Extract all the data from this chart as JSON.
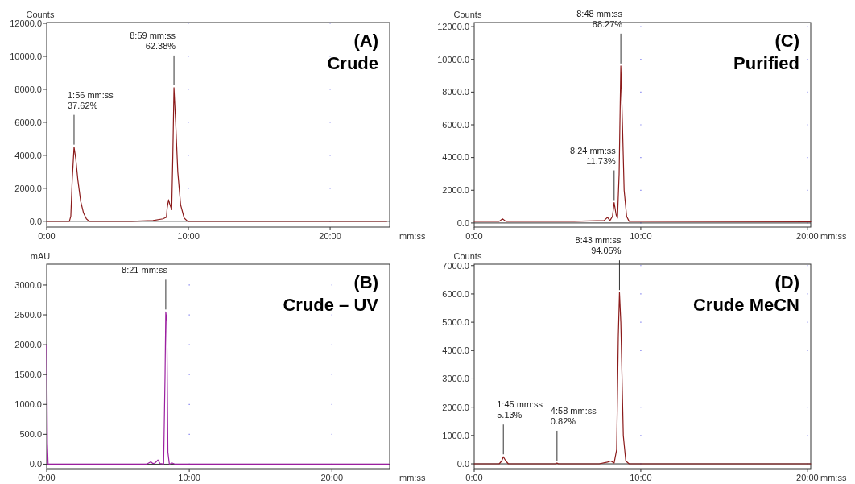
{
  "chart_data": [
    {
      "type": "line",
      "title": "(A)",
      "subtitle": "Crude",
      "ylabel": "Counts",
      "xlabel": "mm:ss",
      "xlim": [
        0,
        24.2
      ],
      "ylim": [
        -350,
        12050
      ],
      "xticks": [
        {
          "value": 0,
          "label": "0:00"
        },
        {
          "value": 10,
          "label": "10:00"
        },
        {
          "value": 20,
          "label": "20:00"
        }
      ],
      "yticks": [
        {
          "value": 0,
          "label": "0.0"
        },
        {
          "value": 2000,
          "label": "2000.0"
        },
        {
          "value": 4000,
          "label": "4000.0"
        },
        {
          "value": 6000,
          "label": "6000.0"
        },
        {
          "value": 8000,
          "label": "8000.0"
        },
        {
          "value": 10000,
          "label": "10000.0"
        },
        {
          "value": 12000,
          "label": "12000.0"
        }
      ],
      "grid": true,
      "annotations": [
        {
          "text": "1:56 mm:ss\n37.62%",
          "x": 1.93,
          "y": 4500
        },
        {
          "text": "8:59 mm:ss\n62.38%",
          "x": 8.98,
          "y": 8100
        }
      ],
      "series": [
        {
          "color": "#8b1a1a",
          "x": [
            0,
            1.6,
            1.7,
            1.8,
            1.93,
            2.05,
            2.2,
            2.4,
            2.6,
            2.8,
            3.0,
            6,
            7.5,
            8.2,
            8.45,
            8.5,
            8.6,
            8.7,
            8.82,
            8.9,
            8.98,
            9.1,
            9.25,
            9.45,
            9.7,
            9.95,
            24
          ],
          "values": [
            0,
            0,
            300,
            2500,
            4500,
            3800,
            2500,
            1200,
            500,
            150,
            0,
            0,
            50,
            150,
            250,
            800,
            1300,
            1000,
            700,
            4000,
            8100,
            6000,
            3000,
            1000,
            200,
            0,
            0
          ]
        }
      ]
    },
    {
      "type": "line",
      "title": "(C)",
      "subtitle": "Purified",
      "ylabel": "Counts",
      "xlabel": "mm:ss",
      "xlim": [
        0,
        20.2
      ],
      "ylim": [
        -250,
        12250
      ],
      "xticks": [
        {
          "value": 0,
          "label": "0:00"
        },
        {
          "value": 10,
          "label": "10:00"
        },
        {
          "value": 20,
          "label": "20:00"
        }
      ],
      "yticks": [
        {
          "value": 0,
          "label": "0.0"
        },
        {
          "value": 2000,
          "label": "2000.0"
        },
        {
          "value": 4000,
          "label": "4000.0"
        },
        {
          "value": 6000,
          "label": "6000.0"
        },
        {
          "value": 8000,
          "label": "8000.0"
        },
        {
          "value": 10000,
          "label": "10000.0"
        },
        {
          "value": 12000,
          "label": "12000.0"
        }
      ],
      "grid": true,
      "annotations": [
        {
          "text": "8:24 mm:ss\n11.73%",
          "x": 8.4,
          "y": 1250
        },
        {
          "text": "8:48 mm:ss\n88.27%",
          "x": 8.8,
          "y": 9600
        }
      ],
      "series": [
        {
          "color": "#8b1a1a",
          "x": [
            0,
            1.5,
            1.7,
            1.9,
            6,
            7.8,
            8.0,
            8.15,
            8.3,
            8.4,
            8.52,
            8.6,
            8.7,
            8.8,
            8.9,
            9.0,
            9.15,
            9.3,
            20.2
          ],
          "values": [
            100,
            100,
            250,
            100,
            100,
            150,
            350,
            150,
            400,
            1250,
            500,
            300,
            3000,
            9600,
            6000,
            2000,
            400,
            100,
            80
          ]
        }
      ]
    },
    {
      "type": "line",
      "title": "(B)",
      "subtitle": "Crude – UV",
      "ylabel": "mAU",
      "xlabel": "mm:ss",
      "xlim": [
        0,
        24.05
      ],
      "ylim": [
        -75,
        3350
      ],
      "xticks": [
        {
          "value": 0,
          "label": "0:00"
        },
        {
          "value": 10,
          "label": "10:00"
        },
        {
          "value": 20,
          "label": "20:00"
        }
      ],
      "yticks": [
        {
          "value": 0,
          "label": "0.0"
        },
        {
          "value": 500,
          "label": "500.0"
        },
        {
          "value": 1000,
          "label": "1000.0"
        },
        {
          "value": 1500,
          "label": "1500.0"
        },
        {
          "value": 2000,
          "label": "2000.0"
        },
        {
          "value": 2500,
          "label": "2500.0"
        },
        {
          "value": 3000,
          "label": "3000.0"
        }
      ],
      "grid": true,
      "annotations": [
        {
          "text": "8:21 mm:ss",
          "x": 8.35,
          "y": 2550
        }
      ],
      "series": [
        {
          "color": "#9b1fa0",
          "x": [
            0,
            0.05,
            0.1,
            7,
            7.3,
            7.45,
            7.6,
            7.8,
            7.95,
            8.2,
            8.3,
            8.35,
            8.42,
            8.5,
            8.6,
            8.8,
            9,
            24
          ],
          "values": [
            2000,
            350,
            0,
            0,
            40,
            10,
            20,
            70,
            10,
            0,
            1500,
            2550,
            2400,
            200,
            0,
            20,
            0,
            0
          ]
        }
      ]
    },
    {
      "type": "line",
      "title": "(D)",
      "subtitle": "Crude MeCN",
      "ylabel": "Counts",
      "xlabel": "mm:ss",
      "xlim": [
        0,
        20.2
      ],
      "ylim": [
        -170,
        7050
      ],
      "xticks": [
        {
          "value": 0,
          "label": "0:00"
        },
        {
          "value": 10,
          "label": "10:00"
        },
        {
          "value": 20,
          "label": "20:00"
        }
      ],
      "yticks": [
        {
          "value": 0,
          "label": "0.0"
        },
        {
          "value": 1000,
          "label": "1000.0"
        },
        {
          "value": 2000,
          "label": "2000.0"
        },
        {
          "value": 3000,
          "label": "3000.0"
        },
        {
          "value": 4000,
          "label": "4000.0"
        },
        {
          "value": 5000,
          "label": "5000.0"
        },
        {
          "value": 6000,
          "label": "6000.0"
        },
        {
          "value": 7000,
          "label": "7000.0"
        }
      ],
      "grid": true,
      "annotations": [
        {
          "text": "1:45 mm:ss\n5.13%",
          "x": 1.75,
          "y": 250
        },
        {
          "text": "4:58 mm:ss\n0.82%",
          "x": 4.97,
          "y": 30
        },
        {
          "text": "8:43 mm:ss\n94.05%",
          "x": 8.72,
          "y": 6050
        }
      ],
      "series": [
        {
          "color": "#8b1a1a",
          "x": [
            0,
            1.5,
            1.65,
            1.75,
            1.9,
            2.05,
            4.9,
            4.97,
            5.05,
            7.5,
            8.0,
            8.2,
            8.4,
            8.55,
            8.65,
            8.72,
            8.8,
            8.95,
            9.1,
            9.3,
            20.2
          ],
          "values": [
            0,
            0,
            100,
            250,
            100,
            0,
            0,
            30,
            0,
            0,
            60,
            100,
            30,
            500,
            4500,
            6050,
            5000,
            1000,
            100,
            0,
            0
          ]
        }
      ]
    }
  ]
}
